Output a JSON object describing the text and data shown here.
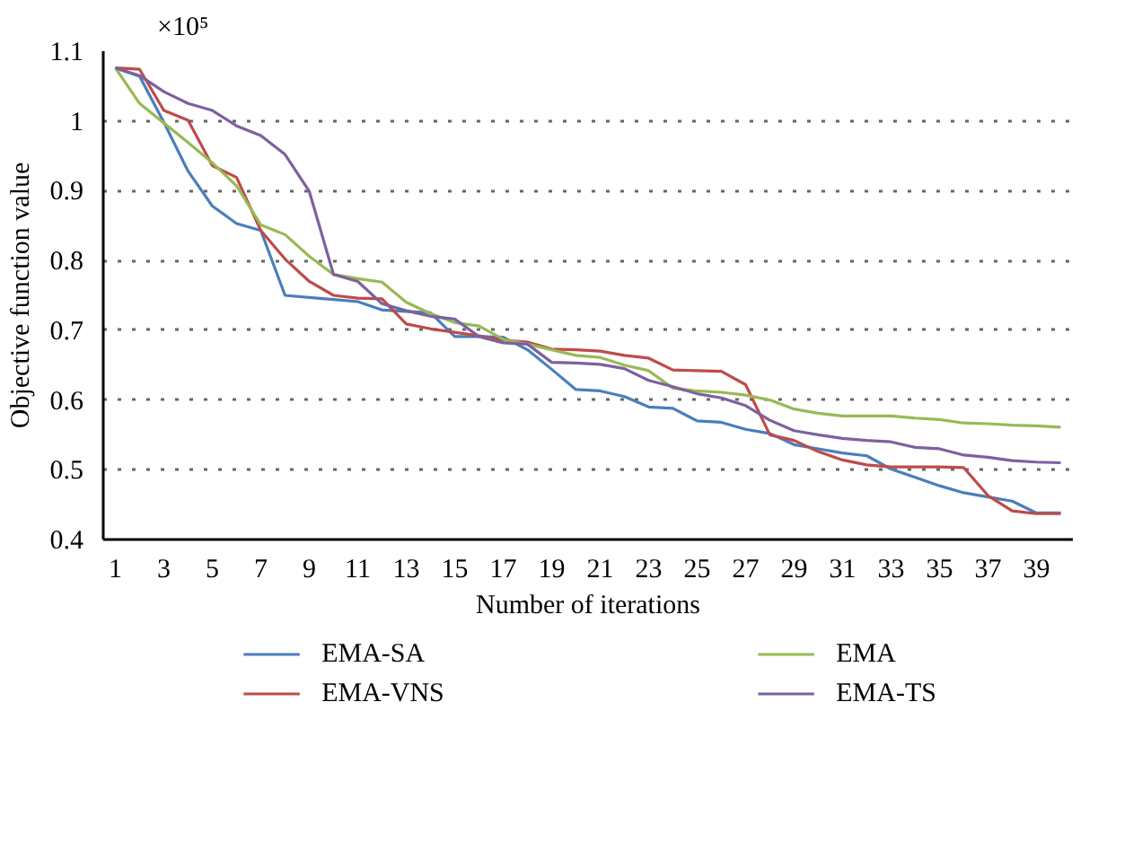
{
  "chart_data": {
    "type": "line",
    "xlabel": "Number of iterations",
    "ylabel": "Objective function value",
    "annotations": [
      "×10⁵"
    ],
    "x": [
      1,
      2,
      3,
      4,
      5,
      6,
      7,
      8,
      9,
      10,
      11,
      12,
      13,
      14,
      15,
      16,
      17,
      18,
      19,
      20,
      21,
      22,
      23,
      24,
      25,
      26,
      27,
      28,
      29,
      30,
      31,
      32,
      33,
      34,
      35,
      36,
      37,
      38,
      39,
      40
    ],
    "xlim": [
      0.5,
      40.5
    ],
    "xticks": [
      1,
      3,
      5,
      7,
      9,
      11,
      13,
      15,
      17,
      19,
      21,
      23,
      25,
      27,
      29,
      31,
      33,
      35,
      37,
      39
    ],
    "ylim": [
      0.4,
      1.1
    ],
    "yticks": [
      0.4,
      0.5,
      0.6,
      0.7,
      0.8,
      0.9,
      {
        "value": 1.0,
        "label": "1"
      },
      1.1
    ],
    "grid": "y",
    "legend": "bottom",
    "marker": "none",
    "line_style": "solid",
    "series": [
      {
        "name": "EMA-SA",
        "color": "#4a7ebb",
        "values": [
          1.076,
          1.064,
          0.998,
          0.928,
          0.878,
          0.853,
          0.843,
          0.75,
          0.747,
          0.744,
          0.741,
          0.729,
          0.727,
          0.725,
          0.691,
          0.691,
          0.69,
          0.672,
          0.644,
          0.615,
          0.613,
          0.605,
          0.59,
          0.588,
          0.57,
          0.568,
          0.558,
          0.552,
          0.536,
          0.53,
          0.524,
          0.52,
          0.501,
          0.489,
          0.477,
          0.467,
          0.461,
          0.455,
          0.438,
          0.438
        ]
      },
      {
        "name": "EMA-VNS",
        "color": "#be4b48",
        "values": [
          1.076,
          1.074,
          1.015,
          1.001,
          0.936,
          0.919,
          0.843,
          0.802,
          0.77,
          0.75,
          0.746,
          0.745,
          0.709,
          0.702,
          0.697,
          0.692,
          0.686,
          0.683,
          0.673,
          0.672,
          0.67,
          0.664,
          0.66,
          0.643,
          0.642,
          0.641,
          0.622,
          0.55,
          0.542,
          0.526,
          0.514,
          0.507,
          0.504,
          0.504,
          0.504,
          0.503,
          0.463,
          0.441,
          0.437,
          0.437
        ]
      },
      {
        "name": "EMA",
        "color": "#98b954",
        "values": [
          1.076,
          1.025,
          0.997,
          0.969,
          0.94,
          0.907,
          0.851,
          0.837,
          0.806,
          0.78,
          0.774,
          0.769,
          0.74,
          0.724,
          0.711,
          0.706,
          0.687,
          0.68,
          0.672,
          0.664,
          0.661,
          0.65,
          0.642,
          0.617,
          0.613,
          0.611,
          0.607,
          0.6,
          0.587,
          0.581,
          0.577,
          0.577,
          0.577,
          0.574,
          0.572,
          0.567,
          0.566,
          0.564,
          0.563,
          0.561
        ]
      },
      {
        "name": "EMA-TS",
        "color": "#7d60a0",
        "values": [
          1.076,
          1.065,
          1.042,
          1.025,
          1.015,
          0.993,
          0.979,
          0.952,
          0.899,
          0.78,
          0.77,
          0.738,
          0.728,
          0.72,
          0.716,
          0.691,
          0.682,
          0.68,
          0.654,
          0.653,
          0.651,
          0.645,
          0.628,
          0.619,
          0.609,
          0.603,
          0.592,
          0.571,
          0.556,
          0.55,
          0.545,
          0.542,
          0.54,
          0.532,
          0.53,
          0.521,
          0.518,
          0.513,
          0.511,
          0.51
        ]
      }
    ]
  }
}
